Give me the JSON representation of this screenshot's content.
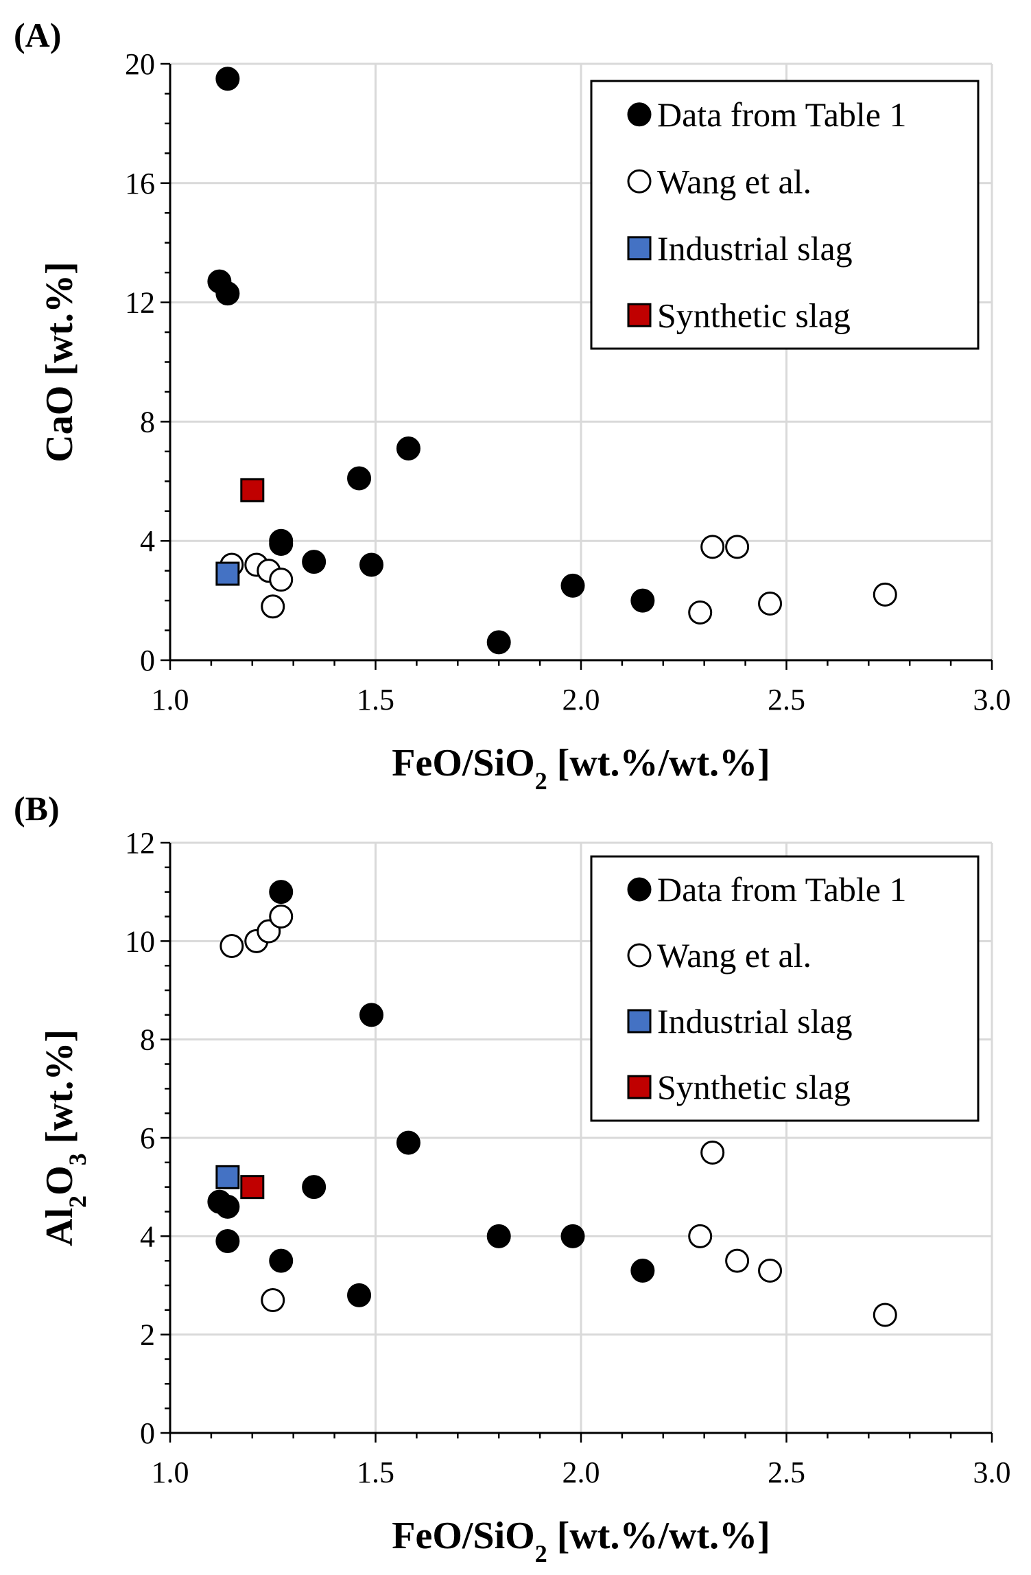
{
  "colors": {
    "data_fill": "#000000",
    "wang_fill": "#ffffff",
    "industrial_fill": "#4472c4",
    "synthetic_fill": "#c00000",
    "grid": "#d9d9d9"
  },
  "chart_data": [
    {
      "type": "scatter",
      "panel_label": "(A)",
      "xlabel_main": "FeO/SiO",
      "xlabel_sub": "2",
      "xlabel_tail": " [wt.%/wt.%]",
      "ylabel_parts": [
        {
          "text": "CaO [wt.%]",
          "sub": false
        }
      ],
      "xlim": [
        1.0,
        3.0
      ],
      "ylim": [
        0,
        20
      ],
      "xticks": [
        1.0,
        1.5,
        2.0,
        2.5,
        3.0
      ],
      "xtick_labels": [
        "1.0",
        "1.5",
        "2.0",
        "2.5",
        "3.0"
      ],
      "yticks": [
        0,
        4,
        8,
        12,
        16,
        20
      ],
      "ytick_labels": [
        "0",
        "4",
        "8",
        "12",
        "16",
        "20"
      ],
      "grid": true,
      "legend_position": "top-right",
      "series": [
        {
          "name": "Data from Table 1",
          "marker": "circle",
          "color_key": "data_fill",
          "x": [
            1.14,
            1.12,
            1.14,
            1.46,
            1.58,
            1.27,
            1.27,
            1.35,
            1.49,
            1.98,
            2.15,
            1.8
          ],
          "y": [
            19.5,
            12.7,
            12.3,
            6.1,
            7.1,
            4.0,
            3.9,
            3.3,
            3.2,
            2.5,
            2.0,
            0.6
          ]
        },
        {
          "name": "Wang et al.",
          "marker": "circle",
          "color_key": "wang_fill",
          "x": [
            1.15,
            1.21,
            1.24,
            1.27,
            1.25,
            2.32,
            2.38,
            2.29,
            2.46,
            2.74
          ],
          "y": [
            3.2,
            3.2,
            3.0,
            2.7,
            1.8,
            3.8,
            3.8,
            1.6,
            1.9,
            2.2
          ]
        },
        {
          "name": "Industrial slag",
          "marker": "square",
          "color_key": "industrial_fill",
          "x": [
            1.14
          ],
          "y": [
            2.9
          ]
        },
        {
          "name": "Synthetic slag",
          "marker": "square",
          "color_key": "synthetic_fill",
          "x": [
            1.2
          ],
          "y": [
            5.7
          ]
        }
      ]
    },
    {
      "type": "scatter",
      "panel_label": "(B)",
      "xlabel_main": "FeO/SiO",
      "xlabel_sub": "2",
      "xlabel_tail": " [wt.%/wt.%]",
      "ylabel_parts": [
        {
          "text": "Al",
          "sub": false
        },
        {
          "text": "2",
          "sub": true
        },
        {
          "text": "O",
          "sub": false
        },
        {
          "text": "3",
          "sub": true
        },
        {
          "text": " [wt.%]",
          "sub": false
        }
      ],
      "xlim": [
        1.0,
        3.0
      ],
      "ylim": [
        0,
        12
      ],
      "xticks": [
        1.0,
        1.5,
        2.0,
        2.5,
        3.0
      ],
      "xtick_labels": [
        "1.0",
        "1.5",
        "2.0",
        "2.5",
        "3.0"
      ],
      "yticks": [
        0,
        2,
        4,
        6,
        8,
        10,
        12
      ],
      "ytick_labels": [
        "0",
        "2",
        "4",
        "6",
        "8",
        "10",
        "12"
      ],
      "grid": true,
      "legend_position": "top-right",
      "series": [
        {
          "name": "Data from Table 1",
          "marker": "circle",
          "color_key": "data_fill",
          "x": [
            1.27,
            1.49,
            1.58,
            1.35,
            1.12,
            1.14,
            1.14,
            1.27,
            1.46,
            1.8,
            1.98,
            2.15
          ],
          "y": [
            11.0,
            8.5,
            5.9,
            5.0,
            4.7,
            4.6,
            3.9,
            3.5,
            2.8,
            4.0,
            4.0,
            3.3
          ]
        },
        {
          "name": "Wang et al.",
          "marker": "circle",
          "color_key": "wang_fill",
          "x": [
            1.15,
            1.21,
            1.24,
            1.27,
            1.25,
            2.32,
            2.29,
            2.38,
            2.46,
            2.74
          ],
          "y": [
            9.9,
            10.0,
            10.2,
            10.5,
            2.7,
            5.7,
            4.0,
            3.5,
            3.3,
            2.4
          ]
        },
        {
          "name": "Industrial slag",
          "marker": "square",
          "color_key": "industrial_fill",
          "x": [
            1.14
          ],
          "y": [
            5.2
          ]
        },
        {
          "name": "Synthetic slag",
          "marker": "square",
          "color_key": "synthetic_fill",
          "x": [
            1.2
          ],
          "y": [
            5.0
          ]
        }
      ]
    }
  ]
}
